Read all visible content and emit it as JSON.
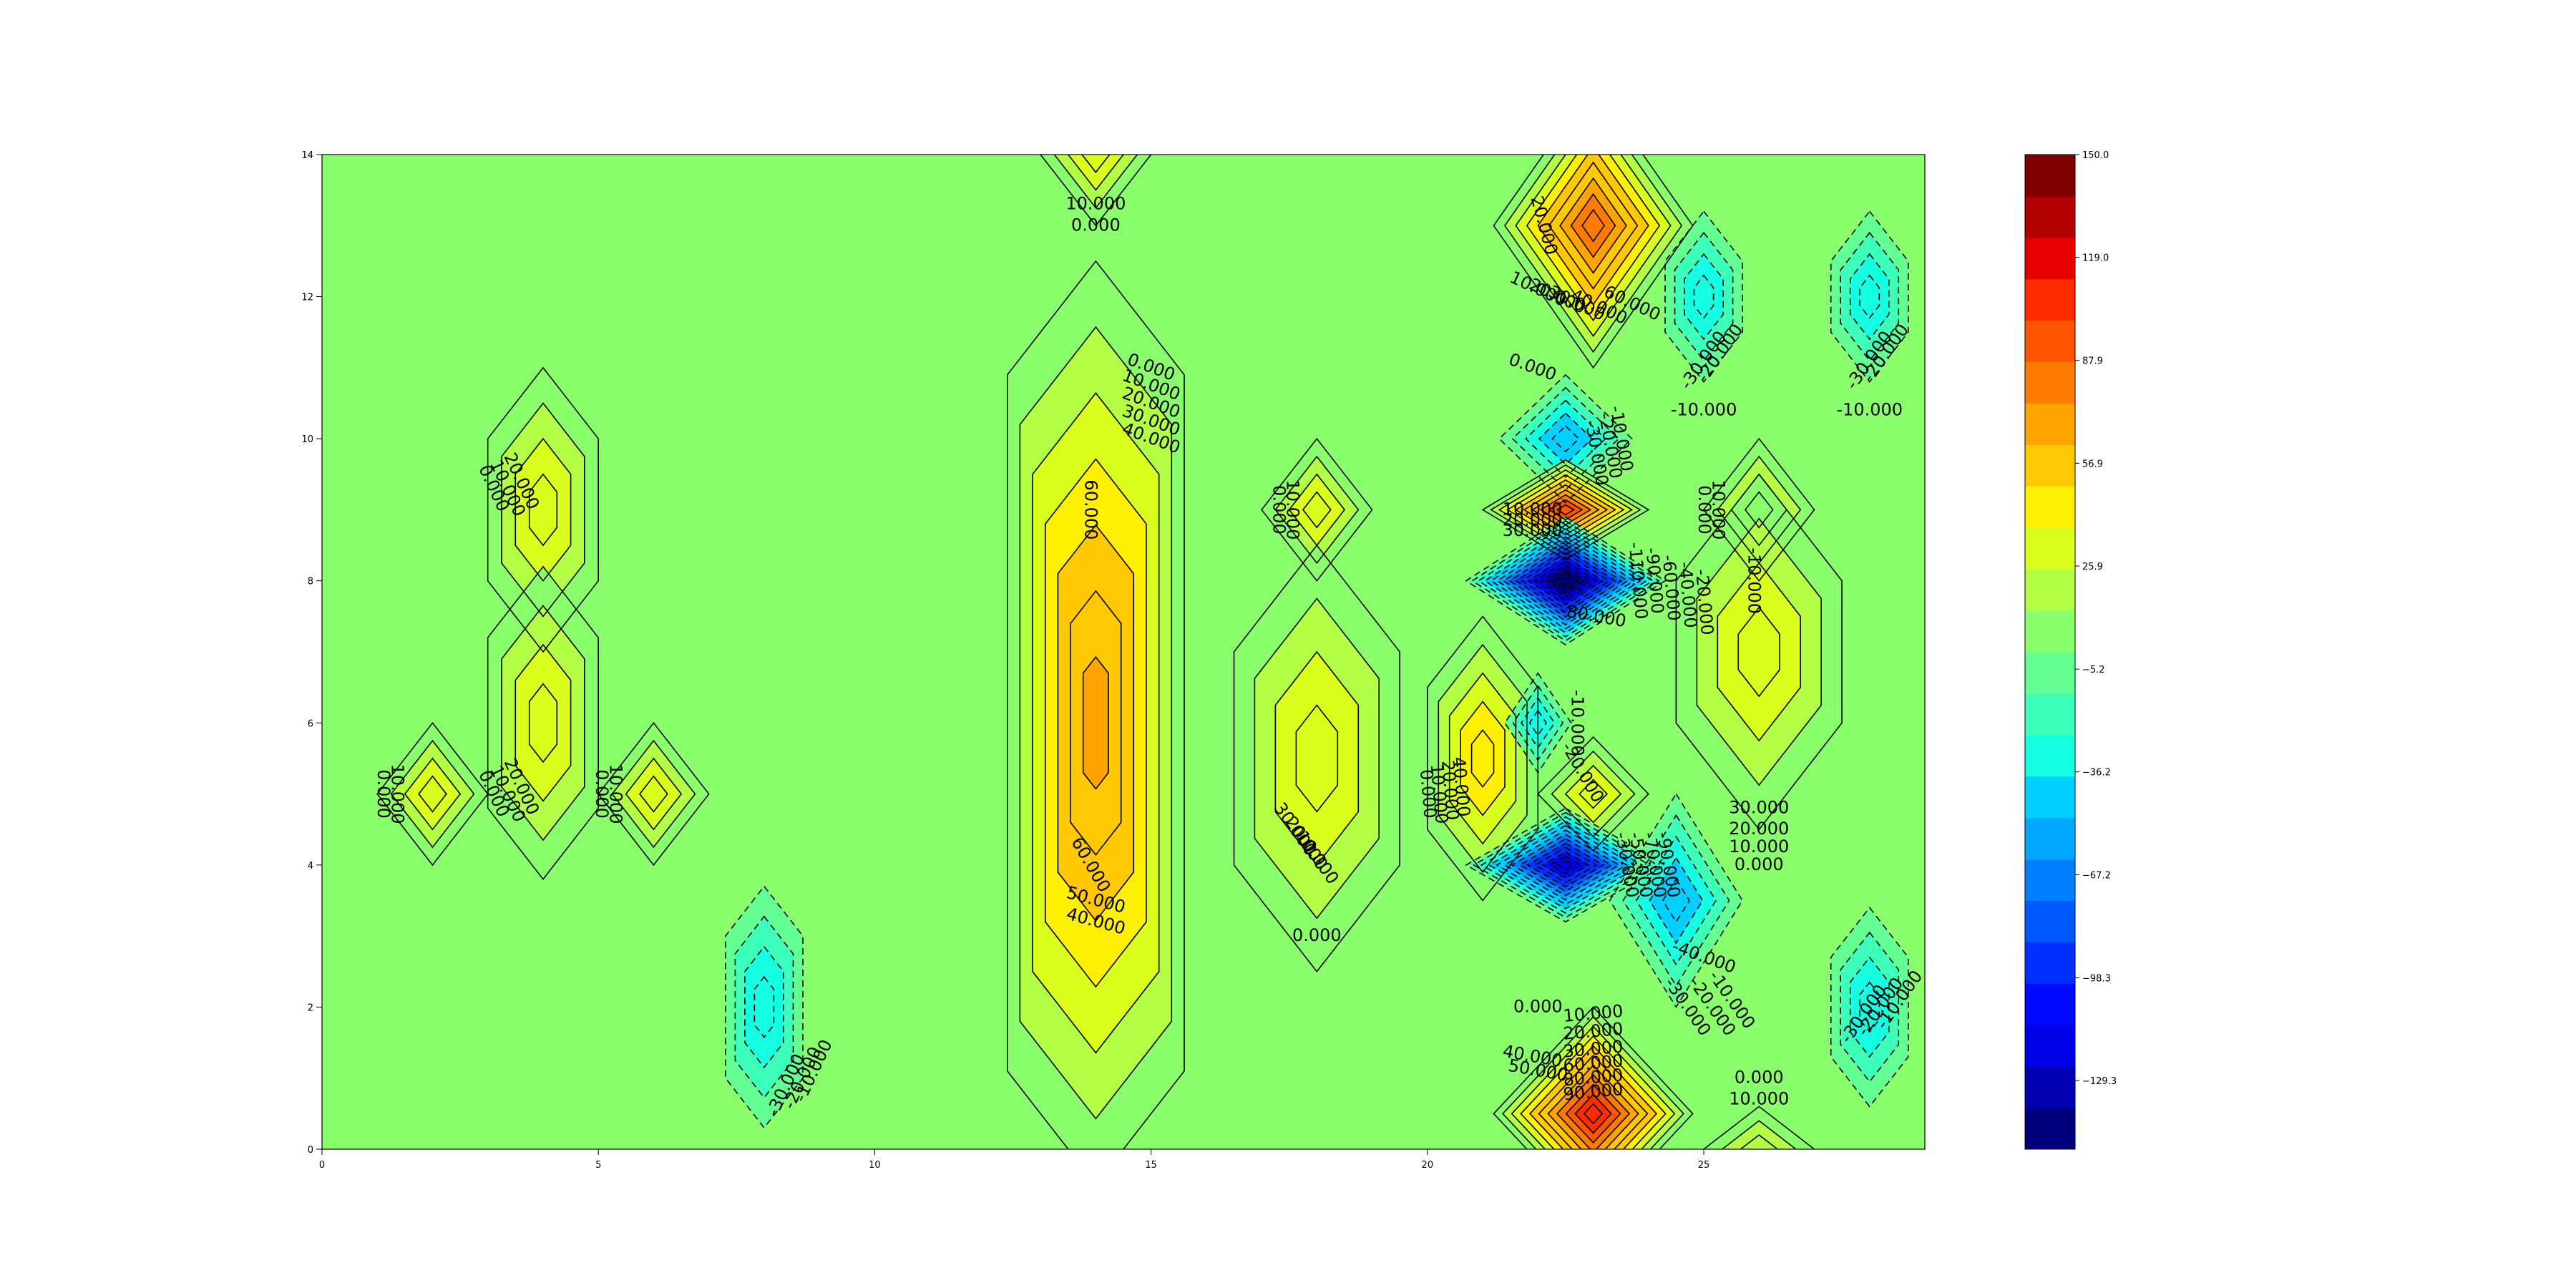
{
  "chart_data": {
    "type": "contour",
    "title": "",
    "xlabel": "",
    "ylabel": "",
    "xlim": [
      0,
      29
    ],
    "ylim": [
      0,
      14
    ],
    "x_ticks": [
      "0",
      "5",
      "10",
      "15",
      "20",
      "25"
    ],
    "x_tick_values": [
      0,
      5,
      10,
      15,
      20,
      25
    ],
    "y_ticks": [
      "0",
      "2",
      "4",
      "6",
      "8",
      "10",
      "12",
      "14"
    ],
    "y_tick_values": [
      0,
      2,
      4,
      6,
      8,
      10,
      12,
      14
    ],
    "colormap": "jet",
    "background_value": 0,
    "colorbar": {
      "min": -150,
      "max": 150,
      "ticks": [
        "150.0",
        "119.0",
        "87.9",
        "56.9",
        "25.9",
        "−5.2",
        "−36.2",
        "−67.2",
        "−98.3",
        "−129.3"
      ],
      "tick_values": [
        150.0,
        119.0,
        87.9,
        56.9,
        25.9,
        -5.2,
        -36.2,
        -67.2,
        -98.3,
        -129.3
      ],
      "band_colors": [
        "#00007f",
        "#0000b2",
        "#0000e8",
        "#0008ff",
        "#0030ff",
        "#0058ff",
        "#0080ff",
        "#00a8ff",
        "#00d0ff",
        "#14ffe2",
        "#3cffba",
        "#63ff93",
        "#8aff6c",
        "#b2ff45",
        "#daff1d",
        "#fff000",
        "#ffc800",
        "#ffa300",
        "#ff7b00",
        "#ff5400",
        "#ff2c00",
        "#e80000",
        "#b20000",
        "#7f0000"
      ]
    },
    "features": [
      {
        "x": 2,
        "y": 5,
        "value": 30,
        "rx": 1.0,
        "ry": 1.0
      },
      {
        "x": 4,
        "y": 9,
        "value": 30,
        "rx": 1.0,
        "ry": 2.0
      },
      {
        "x": 4,
        "y": 6,
        "value": 30,
        "rx": 1.0,
        "ry": 2.2
      },
      {
        "x": 6,
        "y": 5,
        "value": 30,
        "rx": 1.0,
        "ry": 1.0
      },
      {
        "x": 8,
        "y": 2,
        "value": -30,
        "rx": 0.7,
        "ry": 1.7
      },
      {
        "x": 14,
        "y": 14,
        "value": 30,
        "rx": 1.0,
        "ry": 1.0
      },
      {
        "x": 14,
        "y": 6,
        "value": 65,
        "rx": 1.6,
        "ry": 6.5
      },
      {
        "x": 18,
        "y": 9,
        "value": 30,
        "rx": 1.0,
        "ry": 1.0
      },
      {
        "x": 18,
        "y": 5.5,
        "value": 35,
        "rx": 1.5,
        "ry": 3.0
      },
      {
        "x": 23,
        "y": 13,
        "value": 80,
        "rx": 1.8,
        "ry": 2.0
      },
      {
        "x": 22.5,
        "y": 10,
        "value": -40,
        "rx": 1.2,
        "ry": 0.9
      },
      {
        "x": 22.5,
        "y": 9,
        "value": 90,
        "rx": 1.5,
        "ry": 0.7
      },
      {
        "x": 22.5,
        "y": 8,
        "value": -150,
        "rx": 1.8,
        "ry": 0.9
      },
      {
        "x": 21,
        "y": 5.5,
        "value": 40,
        "rx": 1.0,
        "ry": 2.0
      },
      {
        "x": 22,
        "y": 6,
        "value": -30,
        "rx": 0.6,
        "ry": 0.7
      },
      {
        "x": 23,
        "y": 5,
        "value": 30,
        "rx": 1.0,
        "ry": 0.8
      },
      {
        "x": 22.5,
        "y": 4,
        "value": -120,
        "rx": 1.8,
        "ry": 0.8
      },
      {
        "x": 24.5,
        "y": 3.5,
        "value": -40,
        "rx": 1.2,
        "ry": 1.5
      },
      {
        "x": 23,
        "y": 0.5,
        "value": 100,
        "rx": 1.8,
        "ry": 1.5
      },
      {
        "x": 26,
        "y": 9,
        "value": 30,
        "rx": 1.0,
        "ry": 1.0
      },
      {
        "x": 26,
        "y": 7,
        "value": 35,
        "rx": 1.5,
        "ry": 2.5
      },
      {
        "x": 26,
        "y": 0,
        "value": 20,
        "rx": 1.0,
        "ry": 0.6
      },
      {
        "x": 25,
        "y": 12,
        "value": -30,
        "rx": 0.7,
        "ry": 1.2
      },
      {
        "x": 28,
        "y": 12,
        "value": -30,
        "rx": 0.7,
        "ry": 1.2
      },
      {
        "x": 28,
        "y": 2,
        "value": -30,
        "rx": 0.7,
        "ry": 1.4
      }
    ],
    "contour_labels": [
      {
        "x": 1.1,
        "y": 5.0,
        "text": "0.000",
        "rotate": 90
      },
      {
        "x": 1.35,
        "y": 5.0,
        "text": "10.000",
        "rotate": 90
      },
      {
        "x": 3.1,
        "y": 9.3,
        "text": "0.000",
        "rotate": 65
      },
      {
        "x": 3.35,
        "y": 9.3,
        "text": "10.000",
        "rotate": 65
      },
      {
        "x": 3.6,
        "y": 9.4,
        "text": "20.000",
        "rotate": 65
      },
      {
        "x": 3.1,
        "y": 5.0,
        "text": "0.000",
        "rotate": 65
      },
      {
        "x": 3.35,
        "y": 5.0,
        "text": "10.000",
        "rotate": 65
      },
      {
        "x": 3.6,
        "y": 5.1,
        "text": "20.000",
        "rotate": 65
      },
      {
        "x": 5.05,
        "y": 5.0,
        "text": "0.000",
        "rotate": 90
      },
      {
        "x": 5.3,
        "y": 5.0,
        "text": "10.000",
        "rotate": 90
      },
      {
        "x": 8.9,
        "y": 1.1,
        "text": "-10.000",
        "rotate": -65
      },
      {
        "x": 8.7,
        "y": 1.0,
        "text": "-20.000",
        "rotate": -65
      },
      {
        "x": 8.4,
        "y": 0.9,
        "text": "-30.000",
        "rotate": -65
      },
      {
        "x": 14.0,
        "y": 13.3,
        "text": "10.000",
        "rotate": 0
      },
      {
        "x": 14.0,
        "y": 13.0,
        "text": "0.000",
        "rotate": 0
      },
      {
        "x": 15.0,
        "y": 11.0,
        "text": "0.000",
        "rotate": 20
      },
      {
        "x": 15.0,
        "y": 10.75,
        "text": "10.000",
        "rotate": 20
      },
      {
        "x": 15.0,
        "y": 10.5,
        "text": "20.000",
        "rotate": 20
      },
      {
        "x": 15.0,
        "y": 10.25,
        "text": "30.000",
        "rotate": 20
      },
      {
        "x": 15.0,
        "y": 10.0,
        "text": "40.000",
        "rotate": 20
      },
      {
        "x": 13.9,
        "y": 9.0,
        "text": "60.000",
        "rotate": 90
      },
      {
        "x": 13.9,
        "y": 4.0,
        "text": "60.000",
        "rotate": 60
      },
      {
        "x": 14.0,
        "y": 3.5,
        "text": "50.000",
        "rotate": 15
      },
      {
        "x": 14.0,
        "y": 3.2,
        "text": "40.000",
        "rotate": 15
      },
      {
        "x": 17.3,
        "y": 9.0,
        "text": "0.000",
        "rotate": 90
      },
      {
        "x": 17.55,
        "y": 9.0,
        "text": "10.000",
        "rotate": 90
      },
      {
        "x": 18.0,
        "y": 3.0,
        "text": "0.000",
        "rotate": 0
      },
      {
        "x": 17.6,
        "y": 4.5,
        "text": "30.000",
        "rotate": 55
      },
      {
        "x": 17.8,
        "y": 4.3,
        "text": "20.000",
        "rotate": 55
      },
      {
        "x": 18.0,
        "y": 4.1,
        "text": "10.000",
        "rotate": 55
      },
      {
        "x": 22.0,
        "y": 12.1,
        "text": "10.000",
        "rotate": 25
      },
      {
        "x": 22.35,
        "y": 12.0,
        "text": "20.000",
        "rotate": 25
      },
      {
        "x": 22.7,
        "y": 11.9,
        "text": "30.000",
        "rotate": 25
      },
      {
        "x": 23.1,
        "y": 11.85,
        "text": "40.000",
        "rotate": 25
      },
      {
        "x": 23.7,
        "y": 11.9,
        "text": "60.000",
        "rotate": 25
      },
      {
        "x": 22.1,
        "y": 13.0,
        "text": "20.000",
        "rotate": 75
      },
      {
        "x": 21.9,
        "y": 11.0,
        "text": "0.000",
        "rotate": 20
      },
      {
        "x": 23.5,
        "y": 10.0,
        "text": "-10.000",
        "rotate": 80
      },
      {
        "x": 23.3,
        "y": 9.9,
        "text": "-20.000",
        "rotate": 80
      },
      {
        "x": 23.05,
        "y": 9.8,
        "text": "-30.000",
        "rotate": 80
      },
      {
        "x": 21.9,
        "y": 9.0,
        "text": "10.000",
        "rotate": 0
      },
      {
        "x": 21.9,
        "y": 8.85,
        "text": "20.000",
        "rotate": 0
      },
      {
        "x": 21.9,
        "y": 8.7,
        "text": "30.000",
        "rotate": 0
      },
      {
        "x": 23.8,
        "y": 8.0,
        "text": "-110.000",
        "rotate": 85
      },
      {
        "x": 24.1,
        "y": 8.0,
        "text": "-90.000",
        "rotate": 85
      },
      {
        "x": 24.4,
        "y": 7.9,
        "text": "-60.000",
        "rotate": 85
      },
      {
        "x": 24.7,
        "y": 7.8,
        "text": "-40.000",
        "rotate": 85
      },
      {
        "x": 25.0,
        "y": 7.7,
        "text": "-20.000",
        "rotate": 85
      },
      {
        "x": 23.0,
        "y": 7.5,
        "text": "-80.000",
        "rotate": 10
      },
      {
        "x": 25.0,
        "y": 9.0,
        "text": "0.000",
        "rotate": 90
      },
      {
        "x": 25.25,
        "y": 9.0,
        "text": "10.000",
        "rotate": 90
      },
      {
        "x": 25.9,
        "y": 8.0,
        "text": "-10.000",
        "rotate": 90
      },
      {
        "x": 20.0,
        "y": 5.0,
        "text": "0.000",
        "rotate": 85
      },
      {
        "x": 20.2,
        "y": 5.0,
        "text": "10.000",
        "rotate": 85
      },
      {
        "x": 20.4,
        "y": 5.05,
        "text": "20.000",
        "rotate": 85
      },
      {
        "x": 20.6,
        "y": 5.1,
        "text": "40.000",
        "rotate": 85
      },
      {
        "x": 22.8,
        "y": 5.3,
        "text": "-20.000",
        "rotate": 60
      },
      {
        "x": 22.7,
        "y": 6.0,
        "text": "-10.000",
        "rotate": 90
      },
      {
        "x": 23.6,
        "y": 4.0,
        "text": "-30.000",
        "rotate": 80
      },
      {
        "x": 23.85,
        "y": 4.0,
        "text": "-50.000",
        "rotate": 80
      },
      {
        "x": 24.1,
        "y": 4.0,
        "text": "-70.000",
        "rotate": 80
      },
      {
        "x": 24.35,
        "y": 4.0,
        "text": "-90.000",
        "rotate": 80
      },
      {
        "x": 26.0,
        "y": 4.8,
        "text": "30.000",
        "rotate": 0
      },
      {
        "x": 26.0,
        "y": 4.5,
        "text": "20.000",
        "rotate": 0
      },
      {
        "x": 26.0,
        "y": 4.25,
        "text": "10.000",
        "rotate": 0
      },
      {
        "x": 26.0,
        "y": 4.0,
        "text": "0.000",
        "rotate": 0
      },
      {
        "x": 25.0,
        "y": 2.7,
        "text": "-40.000",
        "rotate": 20
      },
      {
        "x": 24.7,
        "y": 2.0,
        "text": "-30.000",
        "rotate": 55
      },
      {
        "x": 25.15,
        "y": 2.0,
        "text": "-20.000",
        "rotate": 55
      },
      {
        "x": 25.5,
        "y": 2.1,
        "text": "-10.000",
        "rotate": 55
      },
      {
        "x": 22.0,
        "y": 2.0,
        "text": "0.000",
        "rotate": 0
      },
      {
        "x": 23.0,
        "y": 1.9,
        "text": "10.000",
        "rotate": -5
      },
      {
        "x": 23.0,
        "y": 1.65,
        "text": "20.000",
        "rotate": -5
      },
      {
        "x": 23.0,
        "y": 1.4,
        "text": "30.000",
        "rotate": -5
      },
      {
        "x": 21.9,
        "y": 1.3,
        "text": "40.000",
        "rotate": 10
      },
      {
        "x": 22.0,
        "y": 1.1,
        "text": "50.000",
        "rotate": 10
      },
      {
        "x": 23.0,
        "y": 1.2,
        "text": "60.000",
        "rotate": -5
      },
      {
        "x": 23.0,
        "y": 1.0,
        "text": "80.000",
        "rotate": -5
      },
      {
        "x": 23.0,
        "y": 0.8,
        "text": "90.000",
        "rotate": -5
      },
      {
        "x": 26.0,
        "y": 1.0,
        "text": "0.000",
        "rotate": 0
      },
      {
        "x": 26.0,
        "y": 0.7,
        "text": "10.000",
        "rotate": 0
      },
      {
        "x": 25.0,
        "y": 10.4,
        "text": "-10.000",
        "rotate": 0
      },
      {
        "x": 25.0,
        "y": 11.1,
        "text": "-30.000",
        "rotate": -55
      },
      {
        "x": 25.3,
        "y": 11.2,
        "text": "-20.000",
        "rotate": -55
      },
      {
        "x": 28.0,
        "y": 10.4,
        "text": "-10.000",
        "rotate": 0
      },
      {
        "x": 28.0,
        "y": 11.1,
        "text": "-30.000",
        "rotate": -55
      },
      {
        "x": 28.3,
        "y": 11.2,
        "text": "-20.000",
        "rotate": -55
      },
      {
        "x": 27.9,
        "y": 1.9,
        "text": "-30.000",
        "rotate": -55
      },
      {
        "x": 28.2,
        "y": 2.0,
        "text": "-20.000",
        "rotate": -55
      },
      {
        "x": 28.55,
        "y": 2.1,
        "text": "-10.000",
        "rotate": -55
      }
    ]
  }
}
